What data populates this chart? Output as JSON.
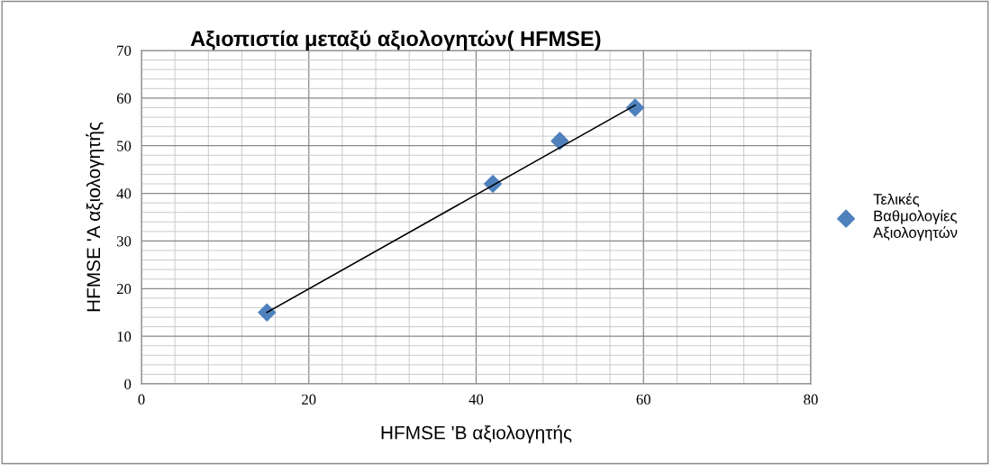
{
  "chart_data": {
    "type": "scatter",
    "title": "Αξιοπιστία μεταξύ αξιολογητών( HFMSE)",
    "xlabel": "HFMSE 'B αξιολογητής",
    "ylabel": "HFMSE 'A αξιολογητής",
    "series": [
      {
        "name": "Τελικές Βαθμολογίες Αξιολογητών",
        "type": "scatter",
        "color": "#4f81bd",
        "marker": "diamond",
        "x": [
          15,
          42,
          50,
          59
        ],
        "values": [
          15,
          42,
          51,
          58
        ]
      },
      {
        "type": "line",
        "color": "#000000",
        "marker": "none",
        "line_style": "solid",
        "x": [
          15,
          59
        ],
        "values": [
          15,
          58.5
        ]
      }
    ],
    "xlim": [
      0,
      80
    ],
    "xticks": [
      0,
      20,
      40,
      60,
      80
    ],
    "ylim": [
      0,
      70
    ],
    "yticks": [
      0,
      10,
      20,
      30,
      40,
      50,
      60,
      70
    ],
    "grid": true,
    "legend": "right"
  }
}
